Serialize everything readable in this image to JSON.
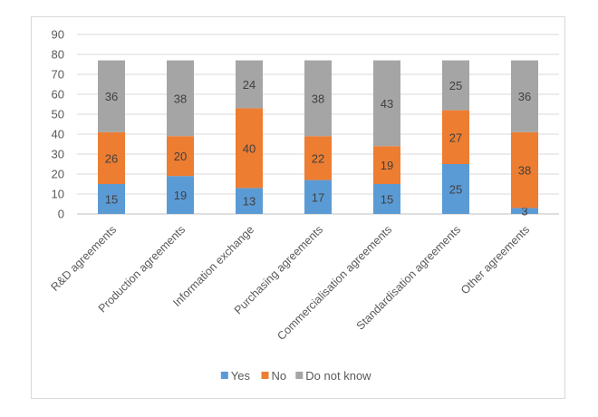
{
  "chart_data": {
    "type": "bar",
    "stacked": true,
    "title": "",
    "xlabel": "",
    "ylabel": "",
    "ylim": [
      0,
      90
    ],
    "yticks": [
      0,
      10,
      20,
      30,
      40,
      50,
      60,
      70,
      80,
      90
    ],
    "grid": true,
    "legend_position": "bottom",
    "categories": [
      "R&D agreements",
      "Production agreements",
      "Information exchange",
      "Purchasing agreements",
      "Commercialisation agreements",
      "Standardisation agreements",
      "Other agreements"
    ],
    "series": [
      {
        "name": "Yes",
        "color": "#5b9bd5",
        "values": [
          15,
          19,
          13,
          17,
          15,
          25,
          3
        ]
      },
      {
        "name": "No",
        "color": "#ed7d31",
        "values": [
          26,
          20,
          40,
          22,
          19,
          27,
          38
        ]
      },
      {
        "name": "Do not know",
        "color": "#a5a5a5",
        "values": [
          36,
          38,
          24,
          38,
          43,
          25,
          36
        ]
      }
    ]
  }
}
